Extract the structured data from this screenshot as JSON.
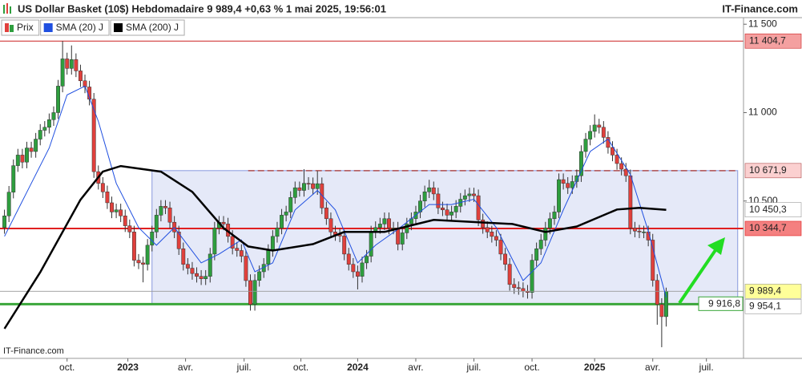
{
  "chart_data": {
    "type": "candlestick",
    "title": "US Dollar Basket (10$) Hebdomadaire 9 989,4 +0,63 % 1 mai 2025, 19:56:01",
    "brand": "IT-Finance.com",
    "watermark": "IT-Finance.com",
    "xlim": [
      -1,
      165.3
    ],
    "ylim": [
      9610,
      11510
    ],
    "yticks": [
      {
        "value": 11500,
        "label": "11 500"
      },
      {
        "value": 11000,
        "label": "11 000"
      },
      {
        "value": 10500,
        "label": "10 500"
      }
    ],
    "xticks": [
      {
        "value": 14,
        "label": "oct."
      },
      {
        "value": 27.6,
        "label": "2023",
        "bold": true
      },
      {
        "value": 40.5,
        "label": "avr."
      },
      {
        "value": 53.6,
        "label": "juil."
      },
      {
        "value": 66.3,
        "label": "oct."
      },
      {
        "value": 79,
        "label": "2024",
        "bold": true
      },
      {
        "value": 92,
        "label": "avr."
      },
      {
        "value": 105,
        "label": "juil."
      },
      {
        "value": 118,
        "label": "oct."
      },
      {
        "value": 132,
        "label": "2025",
        "bold": true
      },
      {
        "value": 145,
        "label": "avr."
      },
      {
        "value": 157,
        "label": "juil."
      }
    ],
    "zone": {
      "x0": 33,
      "x1": 164,
      "low": 9916.8,
      "high": 10671.9,
      "color": "#8899dd"
    },
    "levels": [
      {
        "value": 11404.7,
        "label": "11 404,7",
        "color": "#cc2222",
        "width": 1,
        "label_bg": "#f4a0a0"
      },
      {
        "value": 10671.9,
        "label": "10 671,9",
        "color": "#b05050",
        "width": 1.5,
        "dashed": true,
        "x_start": 54.5,
        "x_end": 164,
        "label_bg": "#fbd0d0"
      },
      {
        "value": 10344.7,
        "label": "10 344,7",
        "color": "#e02020",
        "width": 2,
        "label_bg": "#f48080"
      },
      {
        "value": 9916.8,
        "label": "9 916,8",
        "color": "#3aa63a",
        "width": 3,
        "inside": true
      }
    ],
    "series": [
      {
        "name": "Prix",
        "type": "candlestick",
        "up_color": "#2e9e3e",
        "down_color": "#e0403c",
        "last_label": "9 989,4",
        "label_bg": "#ffff99",
        "candles": [
          [
            10350,
            10451,
            10315,
            10416
          ],
          [
            10416,
            10585,
            10381,
            10550
          ],
          [
            10550,
            10735,
            10515,
            10700
          ],
          [
            10700,
            10795,
            10665,
            10760
          ],
          [
            10760,
            10795,
            10685,
            10720
          ],
          [
            10720,
            10835,
            10685,
            10800
          ],
          [
            10800,
            10835,
            10745,
            10780
          ],
          [
            10780,
            10885,
            10745,
            10850
          ],
          [
            10850,
            10935,
            10815,
            10900
          ],
          [
            10900,
            10952,
            10865,
            10917
          ],
          [
            10917,
            10995,
            10882,
            10960
          ],
          [
            10960,
            11035,
            10925,
            11000
          ],
          [
            11000,
            11185,
            10965,
            11150
          ],
          [
            11150,
            11404.7,
            11115,
            11304
          ],
          [
            11304,
            11339,
            11215,
            11250
          ],
          [
            11250,
            11380,
            11215,
            11300
          ],
          [
            11300,
            11335,
            11201,
            11236
          ],
          [
            11236,
            11271,
            11145,
            11180
          ],
          [
            11180,
            11215,
            11110,
            11145
          ],
          [
            11145,
            11180,
            11041,
            11076
          ],
          [
            11076,
            11111,
            10631,
            10666
          ],
          [
            10666,
            10701,
            10565,
            10600
          ],
          [
            10600,
            10635,
            10517,
            10552
          ],
          [
            10552,
            10587,
            10455,
            10490
          ],
          [
            10490,
            10525,
            10403,
            10438
          ],
          [
            10438,
            10485,
            10403,
            10450
          ],
          [
            10450,
            10485,
            10381,
            10416
          ],
          [
            10416,
            10451,
            10325,
            10360
          ],
          [
            10360,
            10395,
            10290,
            10325
          ],
          [
            10325,
            10360,
            10130,
            10165
          ],
          [
            10165,
            10200,
            10115,
            10150
          ],
          [
            10150,
            10185,
            10040,
            10142
          ],
          [
            10142,
            10285,
            10107,
            10250
          ],
          [
            10250,
            10360,
            10215,
            10325
          ],
          [
            10325,
            10455,
            10290,
            10420
          ],
          [
            10420,
            10505,
            10385,
            10470
          ],
          [
            10470,
            10505,
            10426,
            10461
          ],
          [
            10461,
            10496,
            10345,
            10380
          ],
          [
            10380,
            10415,
            10290,
            10325
          ],
          [
            10325,
            10360,
            10195,
            10230
          ],
          [
            10230,
            10265,
            10107,
            10142
          ],
          [
            10142,
            10177,
            10085,
            10120
          ],
          [
            10120,
            10155,
            10055,
            10090
          ],
          [
            10090,
            10125,
            10039,
            10074
          ],
          [
            10074,
            10109,
            10025,
            10060
          ],
          [
            10060,
            10109,
            10025,
            10074
          ],
          [
            10074,
            10235,
            10039,
            10200
          ],
          [
            10200,
            10382,
            10165,
            10347
          ],
          [
            10347,
            10415,
            10312,
            10380
          ],
          [
            10380,
            10415,
            10335,
            10370
          ],
          [
            10370,
            10405,
            10265,
            10300
          ],
          [
            10300,
            10335,
            10198,
            10233
          ],
          [
            10233,
            10268,
            10185,
            10220
          ],
          [
            10220,
            10255,
            10153,
            10188
          ],
          [
            10188,
            10223,
            10015,
            10050
          ],
          [
            10050,
            10085,
            9880,
            9915
          ],
          [
            9915,
            10086,
            9880,
            10051
          ],
          [
            10051,
            10135,
            10016,
            10100
          ],
          [
            10100,
            10177,
            10065,
            10142
          ],
          [
            10142,
            10255,
            10107,
            10220
          ],
          [
            10220,
            10335,
            10185,
            10300
          ],
          [
            10300,
            10382,
            10265,
            10347
          ],
          [
            10347,
            10455,
            10312,
            10420
          ],
          [
            10420,
            10473,
            10385,
            10438
          ],
          [
            10438,
            10555,
            10403,
            10520
          ],
          [
            10520,
            10610,
            10485,
            10575
          ],
          [
            10575,
            10610,
            10525,
            10560
          ],
          [
            10560,
            10680,
            10525,
            10600
          ],
          [
            10600,
            10635,
            10563,
            10598
          ],
          [
            10598,
            10633,
            10535,
            10570
          ],
          [
            10570,
            10670,
            10535,
            10598
          ],
          [
            10598,
            10633,
            10426,
            10461
          ],
          [
            10461,
            10496,
            10365,
            10400
          ],
          [
            10400,
            10435,
            10290,
            10325
          ],
          [
            10325,
            10360,
            10275,
            10310
          ],
          [
            10310,
            10345,
            10267,
            10302
          ],
          [
            10302,
            10337,
            10165,
            10200
          ],
          [
            10200,
            10235,
            10107,
            10142
          ],
          [
            10142,
            10177,
            10065,
            10100
          ],
          [
            10100,
            10135,
            10000,
            10074
          ],
          [
            10074,
            10185,
            10039,
            10150
          ],
          [
            10150,
            10223,
            10115,
            10188
          ],
          [
            10188,
            10360,
            10153,
            10325
          ],
          [
            10325,
            10385,
            10290,
            10350
          ],
          [
            10350,
            10405,
            10315,
            10370
          ],
          [
            10370,
            10435,
            10335,
            10400
          ],
          [
            10400,
            10435,
            10312,
            10347
          ],
          [
            10347,
            10382,
            10312,
            10347
          ],
          [
            10347,
            10382,
            10221,
            10256
          ],
          [
            10256,
            10355,
            10221,
            10320
          ],
          [
            10320,
            10405,
            10285,
            10370
          ],
          [
            10370,
            10435,
            10335,
            10400
          ],
          [
            10400,
            10473,
            10365,
            10438
          ],
          [
            10438,
            10535,
            10403,
            10500
          ],
          [
            10500,
            10587,
            10465,
            10552
          ],
          [
            10552,
            10620,
            10517,
            10575
          ],
          [
            10575,
            10610,
            10505,
            10540
          ],
          [
            10540,
            10575,
            10426,
            10461
          ],
          [
            10461,
            10496,
            10415,
            10450
          ],
          [
            10450,
            10485,
            10385,
            10420
          ],
          [
            10420,
            10473,
            10385,
            10438
          ],
          [
            10438,
            10505,
            10403,
            10470
          ],
          [
            10470,
            10545,
            10435,
            10510
          ],
          [
            10510,
            10565,
            10475,
            10530
          ],
          [
            10530,
            10575,
            10495,
            10540
          ],
          [
            10540,
            10575,
            10495,
            10530
          ],
          [
            10530,
            10565,
            10358,
            10393
          ],
          [
            10393,
            10428,
            10315,
            10350
          ],
          [
            10350,
            10385,
            10290,
            10325
          ],
          [
            10325,
            10360,
            10265,
            10300
          ],
          [
            10300,
            10335,
            10244,
            10279
          ],
          [
            10279,
            10314,
            10165,
            10200
          ],
          [
            10200,
            10235,
            10107,
            10142
          ],
          [
            10142,
            10177,
            9993,
            10028
          ],
          [
            10028,
            10063,
            9975,
            10010
          ],
          [
            10010,
            10045,
            9970,
            10005
          ],
          [
            10005,
            10040,
            9955,
            9990
          ],
          [
            9990,
            10025,
            9948,
            9983
          ],
          [
            9983,
            10200,
            9948,
            10165
          ],
          [
            10165,
            10265,
            10130,
            10230
          ],
          [
            10230,
            10314,
            10195,
            10279
          ],
          [
            10279,
            10382,
            10244,
            10347
          ],
          [
            10347,
            10435,
            10312,
            10400
          ],
          [
            10400,
            10473,
            10365,
            10438
          ],
          [
            10438,
            10656,
            10403,
            10621
          ],
          [
            10621,
            10656,
            10565,
            10600
          ],
          [
            10600,
            10635,
            10540,
            10575
          ],
          [
            10575,
            10645,
            10540,
            10610
          ],
          [
            10610,
            10678,
            10575,
            10643
          ],
          [
            10643,
            10815,
            10608,
            10780
          ],
          [
            10780,
            10885,
            10745,
            10850
          ],
          [
            10850,
            10929,
            10815,
            10894
          ],
          [
            10894,
            10990,
            10859,
            10930
          ],
          [
            10930,
            10965,
            10882,
            10917
          ],
          [
            10917,
            10952,
            10825,
            10860
          ],
          [
            10860,
            10895,
            10768,
            10803
          ],
          [
            10803,
            10838,
            10725,
            10760
          ],
          [
            10760,
            10795,
            10677,
            10712
          ],
          [
            10712,
            10747,
            10645,
            10680
          ],
          [
            10680,
            10715,
            10608,
            10643
          ],
          [
            10643,
            10678,
            10312,
            10347
          ],
          [
            10347,
            10382,
            10295,
            10330
          ],
          [
            10330,
            10365,
            10290,
            10325
          ],
          [
            10325,
            10360,
            10290,
            10325
          ],
          [
            10325,
            10360,
            10244,
            10279
          ],
          [
            10279,
            10314,
            10016,
            10051
          ],
          [
            10051,
            10086,
            9800,
            9915
          ],
          [
            9915,
            9950,
            9673,
            9846
          ],
          [
            9846,
            10010,
            9790,
            9989.4
          ]
        ]
      },
      {
        "name": "SMA (20) J",
        "type": "line",
        "color": "#1f4fe0",
        "width": 1,
        "last_label": "9 954,1",
        "label_bg": "#ffffff",
        "x": [
          0,
          5,
          10,
          14,
          18,
          21,
          25,
          30,
          34,
          38,
          44,
          48,
          53,
          56,
          60,
          65,
          70,
          74,
          79,
          83,
          88,
          95,
          100,
          105,
          110,
          116,
          120,
          125,
          131,
          135,
          140,
          144,
          148
        ],
        "values": [
          10300,
          10550,
          10800,
          11100,
          11150,
          10950,
          10600,
          10350,
          10250,
          10350,
          10150,
          10200,
          10280,
          10100,
          10150,
          10450,
          10560,
          10450,
          10150,
          10250,
          10340,
          10480,
          10480,
          10510,
          10350,
          10050,
          10150,
          10450,
          10780,
          10850,
          10650,
          10330,
          9954.1
        ]
      },
      {
        "name": "SMA (200) J",
        "type": "line",
        "color": "#000000",
        "width": 2.5,
        "last_label": "10 450,3",
        "label_bg": "#ffffff",
        "x": [
          0,
          8,
          17,
          22,
          26,
          35,
          42,
          49,
          54.5,
          60,
          69,
          76,
          85,
          96,
          106.5,
          113.6,
          121,
          128,
          137,
          142,
          148
        ],
        "values": [
          9778,
          10097,
          10507,
          10666,
          10698,
          10666,
          10552,
          10347,
          10243,
          10220,
          10256,
          10325,
          10325,
          10393,
          10379,
          10370,
          10325,
          10356,
          10452,
          10461,
          10450.3
        ]
      }
    ]
  }
}
